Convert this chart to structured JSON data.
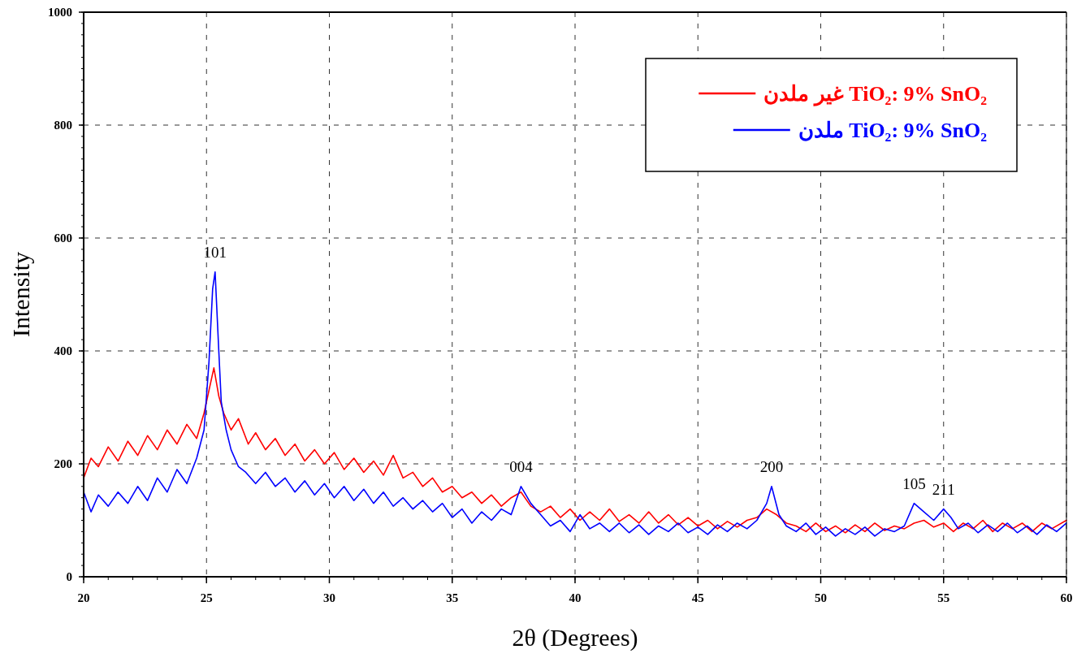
{
  "chart_data": {
    "type": "line",
    "xlabel": "2θ (Degrees)",
    "ylabel": "Intensity",
    "xlim": [
      20,
      60
    ],
    "ylim": [
      0,
      1000
    ],
    "xticks": [
      20,
      25,
      30,
      35,
      40,
      45,
      50,
      55,
      60
    ],
    "yticks": [
      0,
      200,
      400,
      600,
      800,
      1000
    ],
    "grid": true,
    "legend": "top right",
    "annotations": [
      {
        "text": "101",
        "x": 25.35,
        "y": 540
      },
      {
        "text": "004",
        "x": 37.8,
        "y": 160
      },
      {
        "text": "200",
        "x": 48,
        "y": 160
      },
      {
        "text": "105",
        "x": 53.8,
        "y": 130
      },
      {
        "text": "211",
        "x": 55,
        "y": 120
      }
    ],
    "series": [
      {
        "name": "TiO₂: 9% SnO₂ غير ملدن",
        "color": "#ff0000",
        "x": [
          20,
          20.3,
          20.6,
          21,
          21.4,
          21.8,
          22.2,
          22.6,
          23,
          23.4,
          23.8,
          24.2,
          24.6,
          24.9,
          25.1,
          25.3,
          25.5,
          25.7,
          26,
          26.3,
          26.7,
          27,
          27.4,
          27.8,
          28.2,
          28.6,
          29,
          29.4,
          29.8,
          30.2,
          30.6,
          31,
          31.4,
          31.8,
          32.2,
          32.6,
          33,
          33.4,
          33.8,
          34.2,
          34.6,
          35,
          35.4,
          35.8,
          36.2,
          36.6,
          37,
          37.4,
          37.8,
          38.2,
          38.6,
          39,
          39.4,
          39.8,
          40.2,
          40.6,
          41,
          41.4,
          41.8,
          42.2,
          42.6,
          43,
          43.4,
          43.8,
          44.2,
          44.6,
          45,
          45.4,
          45.8,
          46.2,
          46.6,
          47,
          47.4,
          47.8,
          48.2,
          48.6,
          49,
          49.4,
          49.8,
          50.2,
          50.6,
          51,
          51.4,
          51.8,
          52.2,
          52.6,
          53,
          53.4,
          53.8,
          54.2,
          54.6,
          55,
          55.4,
          55.8,
          56.2,
          56.6,
          57,
          57.4,
          57.8,
          58.2,
          58.6,
          59,
          59.4,
          60
        ],
        "values": [
          175,
          210,
          195,
          230,
          205,
          240,
          215,
          250,
          225,
          260,
          235,
          270,
          245,
          290,
          330,
          370,
          320,
          290,
          260,
          280,
          235,
          255,
          225,
          245,
          215,
          235,
          205,
          225,
          200,
          220,
          190,
          210,
          185,
          205,
          180,
          215,
          175,
          185,
          160,
          175,
          150,
          160,
          140,
          150,
          130,
          145,
          125,
          140,
          150,
          125,
          115,
          125,
          105,
          120,
          100,
          115,
          100,
          120,
          98,
          110,
          95,
          115,
          95,
          110,
          92,
          105,
          90,
          100,
          85,
          98,
          88,
          100,
          105,
          120,
          110,
          95,
          90,
          80,
          95,
          80,
          90,
          78,
          92,
          80,
          95,
          82,
          90,
          85,
          95,
          100,
          88,
          95,
          80,
          95,
          85,
          100,
          80,
          95,
          85,
          95,
          80,
          95,
          85,
          100
        ]
      },
      {
        "name": "TiO₂: 9% SnO₂ ملدن",
        "color": "#0000ff",
        "x": [
          20,
          20.3,
          20.6,
          21,
          21.4,
          21.8,
          22.2,
          22.6,
          23,
          23.4,
          23.8,
          24.2,
          24.6,
          24.9,
          25.1,
          25.25,
          25.35,
          25.5,
          25.6,
          25.8,
          26,
          26.3,
          26.6,
          27,
          27.4,
          27.8,
          28.2,
          28.6,
          29,
          29.4,
          29.8,
          30.2,
          30.6,
          31,
          31.4,
          31.8,
          32.2,
          32.6,
          33,
          33.4,
          33.8,
          34.2,
          34.6,
          35,
          35.4,
          35.8,
          36.2,
          36.6,
          37,
          37.4,
          37.8,
          38.2,
          38.6,
          39,
          39.4,
          39.8,
          40.2,
          40.6,
          41,
          41.4,
          41.8,
          42.2,
          42.6,
          43,
          43.4,
          43.8,
          44.2,
          44.6,
          45,
          45.4,
          45.8,
          46.2,
          46.6,
          47,
          47.4,
          47.8,
          48,
          48.3,
          48.6,
          49,
          49.4,
          49.8,
          50.2,
          50.6,
          51,
          51.4,
          51.8,
          52.2,
          52.6,
          53,
          53.4,
          53.8,
          54.2,
          54.6,
          55,
          55.3,
          55.6,
          56,
          56.4,
          56.8,
          57.2,
          57.6,
          58,
          58.4,
          58.8,
          59.2,
          59.6,
          60
        ],
        "values": [
          150,
          115,
          145,
          125,
          150,
          130,
          160,
          135,
          175,
          150,
          190,
          165,
          210,
          260,
          380,
          510,
          540,
          400,
          310,
          260,
          225,
          195,
          185,
          165,
          185,
          160,
          175,
          150,
          170,
          145,
          165,
          140,
          160,
          135,
          155,
          130,
          150,
          125,
          140,
          120,
          135,
          115,
          130,
          105,
          120,
          95,
          115,
          100,
          120,
          110,
          160,
          130,
          110,
          90,
          100,
          80,
          110,
          85,
          95,
          80,
          95,
          78,
          92,
          75,
          90,
          80,
          95,
          78,
          88,
          75,
          92,
          80,
          95,
          85,
          100,
          130,
          160,
          110,
          90,
          80,
          95,
          75,
          88,
          72,
          85,
          75,
          88,
          72,
          85,
          80,
          90,
          130,
          115,
          100,
          120,
          105,
          85,
          95,
          78,
          92,
          80,
          95,
          78,
          90,
          75,
          92,
          80,
          95
        ]
      }
    ]
  }
}
